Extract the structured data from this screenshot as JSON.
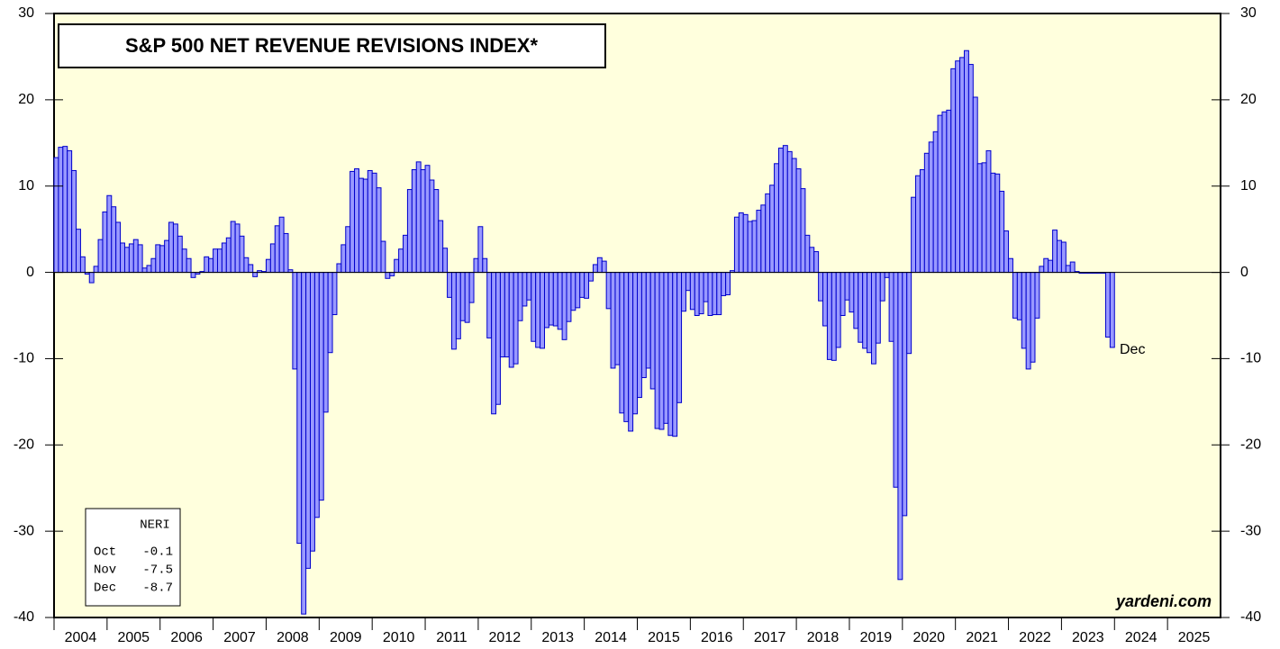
{
  "chart_data": {
    "type": "bar",
    "title": "S&P 500 NET REVENUE REVISIONS INDEX*",
    "source": "yardeni.com",
    "annotation": "Dec",
    "categories": [
      "2004",
      "2005",
      "2006",
      "2007",
      "2008",
      "2009",
      "2010",
      "2011",
      "2012",
      "2013",
      "2014",
      "2015",
      "2016",
      "2017",
      "2018",
      "2019",
      "2020",
      "2021",
      "2022",
      "2023",
      "2024",
      "2025"
    ],
    "values": [
      [
        13.3,
        14.5,
        14.6,
        14.1,
        11.8,
        5.0,
        1.8,
        -0.2,
        -1.2,
        0.7,
        3.8,
        7.0
      ],
      [
        8.9,
        7.6,
        5.8,
        3.4,
        2.9,
        3.3,
        3.8,
        3.2,
        0.5,
        0.8,
        1.6,
        3.2
      ],
      [
        3.1,
        3.7,
        5.8,
        5.6,
        4.2,
        2.7,
        1.6,
        -0.6,
        -0.2,
        0.1,
        1.8,
        1.6
      ],
      [
        2.7,
        2.7,
        3.4,
        4.0,
        5.9,
        5.6,
        4.2,
        1.7,
        0.9,
        -0.5,
        0.2,
        0.1
      ],
      [
        1.5,
        3.3,
        5.4,
        6.4,
        4.5,
        0.3,
        -11.2,
        -31.4,
        -39.6,
        -34.3,
        -32.3,
        -28.4
      ],
      [
        -26.4,
        -16.2,
        -9.3,
        -4.9,
        1.0,
        3.2,
        5.3,
        11.7,
        12.0,
        10.9,
        10.8,
        11.8
      ],
      [
        11.5,
        9.8,
        3.6,
        -0.7,
        -0.4,
        1.5,
        2.7,
        4.3,
        9.6,
        11.9,
        12.8,
        11.9
      ],
      [
        12.4,
        10.7,
        9.6,
        6.0,
        2.8,
        -2.9,
        -8.9,
        -7.7,
        -5.6,
        -5.8,
        -3.5,
        1.6
      ],
      [
        5.3,
        1.6,
        -7.6,
        -16.4,
        -15.3,
        -9.8,
        -9.8,
        -11.0,
        -10.6,
        -5.6,
        -3.9,
        -3.2
      ],
      [
        -8.0,
        -8.7,
        -8.8,
        -6.4,
        -6.1,
        -6.2,
        -6.6,
        -7.8,
        -5.7,
        -4.4,
        -4.1,
        -2.9
      ],
      [
        -3.0,
        -1.0,
        0.9,
        1.7,
        1.3,
        -4.2,
        -11.1,
        -10.7,
        -16.3,
        -17.3,
        -18.4,
        -16.4
      ],
      [
        -14.5,
        -12.2,
        -11.1,
        -13.5,
        -18.1,
        -18.2,
        -17.5,
        -18.9,
        -19.0,
        -15.1,
        -4.5,
        -2.1
      ],
      [
        -4.3,
        -5.0,
        -4.8,
        -3.4,
        -5.0,
        -4.9,
        -4.9,
        -2.7,
        -2.6,
        0.2,
        6.4,
        6.9
      ],
      [
        6.7,
        5.9,
        6.0,
        7.2,
        7.8,
        9.1,
        10.1,
        12.6,
        14.4,
        14.7,
        14.0,
        13.2
      ],
      [
        12.0,
        9.7,
        4.3,
        2.9,
        2.4,
        -3.3,
        -6.2,
        -10.1,
        -10.2,
        -8.7,
        -5.0,
        -3.2
      ],
      [
        -4.6,
        -6.5,
        -8.1,
        -8.8,
        -9.3,
        -10.6,
        -8.2,
        -3.3,
        -0.6,
        -8.0,
        -24.9,
        -35.6
      ],
      [
        -28.2,
        -9.4,
        8.7,
        11.2,
        11.9,
        13.8,
        15.1,
        16.3,
        18.2,
        18.6,
        18.8,
        23.6
      ],
      [
        24.5,
        24.9,
        25.7,
        24.1,
        20.3,
        12.6,
        12.7,
        14.1,
        11.5,
        11.4,
        9.4,
        4.8
      ],
      [
        1.6,
        -5.3,
        -5.5,
        -8.8,
        -11.2,
        -10.4,
        -5.3,
        0.7,
        1.6,
        1.4,
        4.9,
        3.7
      ],
      [
        3.5,
        0.8,
        1.2,
        0.1,
        -0.1,
        -0.1,
        -0.1,
        -0.1,
        -0.1,
        -0.1,
        -7.5,
        -8.7
      ],
      [],
      []
    ],
    "color": "#9999ff",
    "edge_color": "#0000cc",
    "background": "#ffffdd",
    "ylim": [
      -40,
      30
    ],
    "yticks": [
      -40,
      -30,
      -20,
      -10,
      0,
      10,
      20,
      30
    ],
    "legend_box": {
      "title": "NERI",
      "rows": [
        [
          "Oct",
          "-0.1"
        ],
        [
          "Nov",
          "-7.5"
        ],
        [
          "Dec",
          "-8.7"
        ]
      ]
    }
  }
}
